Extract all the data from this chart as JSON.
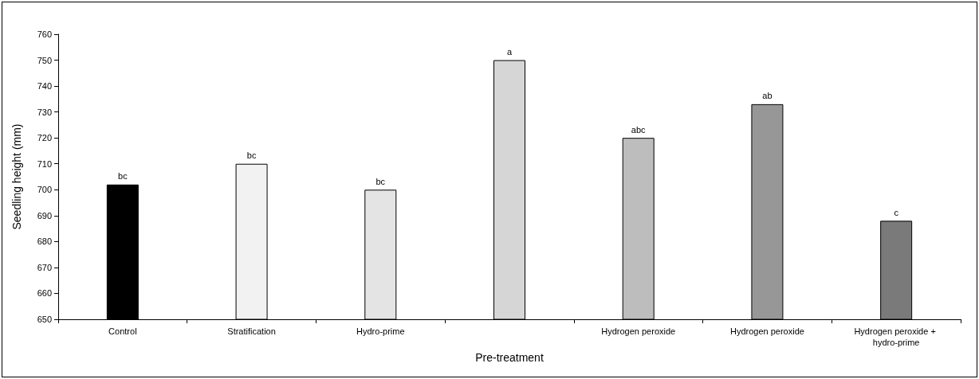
{
  "chart_data": {
    "type": "bar",
    "xlabel": "Pre-treatment",
    "ylabel": "Seedling height (mm)",
    "categories": [
      "Control",
      "Stratification",
      "Hydro-prime",
      null,
      "Hydrogen peroxide",
      "Hydrogen peroxide",
      "Hydrogen peroxide + hydro-prime"
    ],
    "values": [
      702,
      710,
      700,
      750,
      720,
      733,
      688
    ],
    "colors": [
      "#000000",
      "#f2f2f2",
      "#e4e4e4",
      "#d6d6d6",
      "#bdbdbd",
      "#979797",
      "#7a7a7a"
    ],
    "value_labels": [
      "bc",
      "bc",
      "bc",
      "a",
      "abc",
      "ab",
      "c"
    ],
    "ylim": [
      650,
      760
    ],
    "yticks": [
      650,
      660,
      670,
      680,
      690,
      700,
      710,
      720,
      730,
      740,
      750,
      760
    ]
  }
}
